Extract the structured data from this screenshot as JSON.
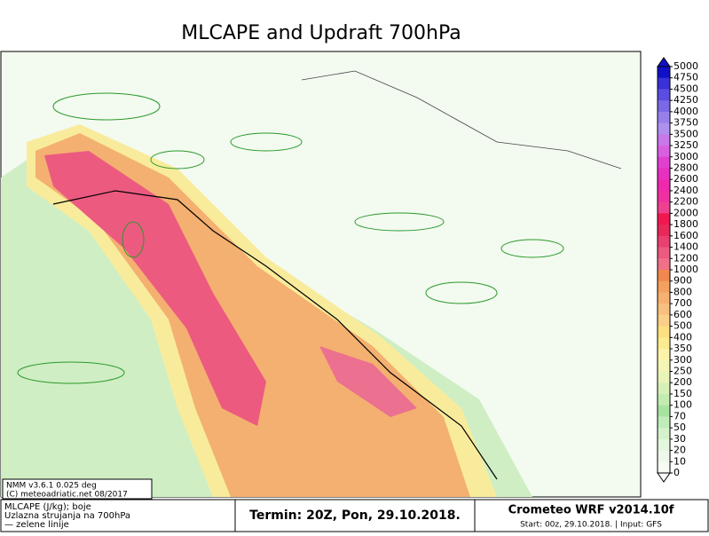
{
  "header": {
    "title": "MLCAPE and Updraft 700hPa"
  },
  "legend": {
    "ticks": [
      5000,
      4750,
      4500,
      4250,
      4000,
      3750,
      3500,
      3250,
      3000,
      2800,
      2600,
      2400,
      2200,
      2000,
      1800,
      1600,
      1400,
      1200,
      1000,
      900,
      800,
      700,
      600,
      500,
      400,
      350,
      300,
      250,
      200,
      150,
      100,
      70,
      50,
      30,
      20,
      10,
      0
    ],
    "colors": [
      "#1010c8",
      "#3a30d8",
      "#5a4ee0",
      "#7a68e6",
      "#9880ea",
      "#b090ee",
      "#c878e8",
      "#d860e0",
      "#e040d0",
      "#e830c0",
      "#f028b0",
      "#f030a0",
      "#f04090",
      "#f01850",
      "#e82858",
      "#e84070",
      "#ec5a80",
      "#f07088",
      "#f08850",
      "#f4a060",
      "#f6b070",
      "#f8c080",
      "#fad088",
      "#fce080",
      "#fcec90",
      "#fcf4a8",
      "#f4f4b4",
      "#e8f4b8",
      "#d8f0b8",
      "#c4ecb0",
      "#a8e4a0",
      "#c0ecb8",
      "#d4f2cc",
      "#e4f6dc",
      "#eef8ea",
      "#f6fcf4"
    ]
  },
  "map_note": {
    "line1": "NMM v3.6.1 0.025 deg",
    "line2": "(C) meteoadriatic.net 08/2017"
  },
  "footer": {
    "left": [
      "MLCAPE (J/kg); boje",
      "Uzlazna strujanja na 700hPa",
      "— zelene linije"
    ],
    "center": "Termin: 20Z, Pon, 29.10.2018.",
    "right_title": "Crometeo WRF v2014.10f",
    "right_sub": "Start: 00z, 29.10.2018. | Input: GFS"
  }
}
